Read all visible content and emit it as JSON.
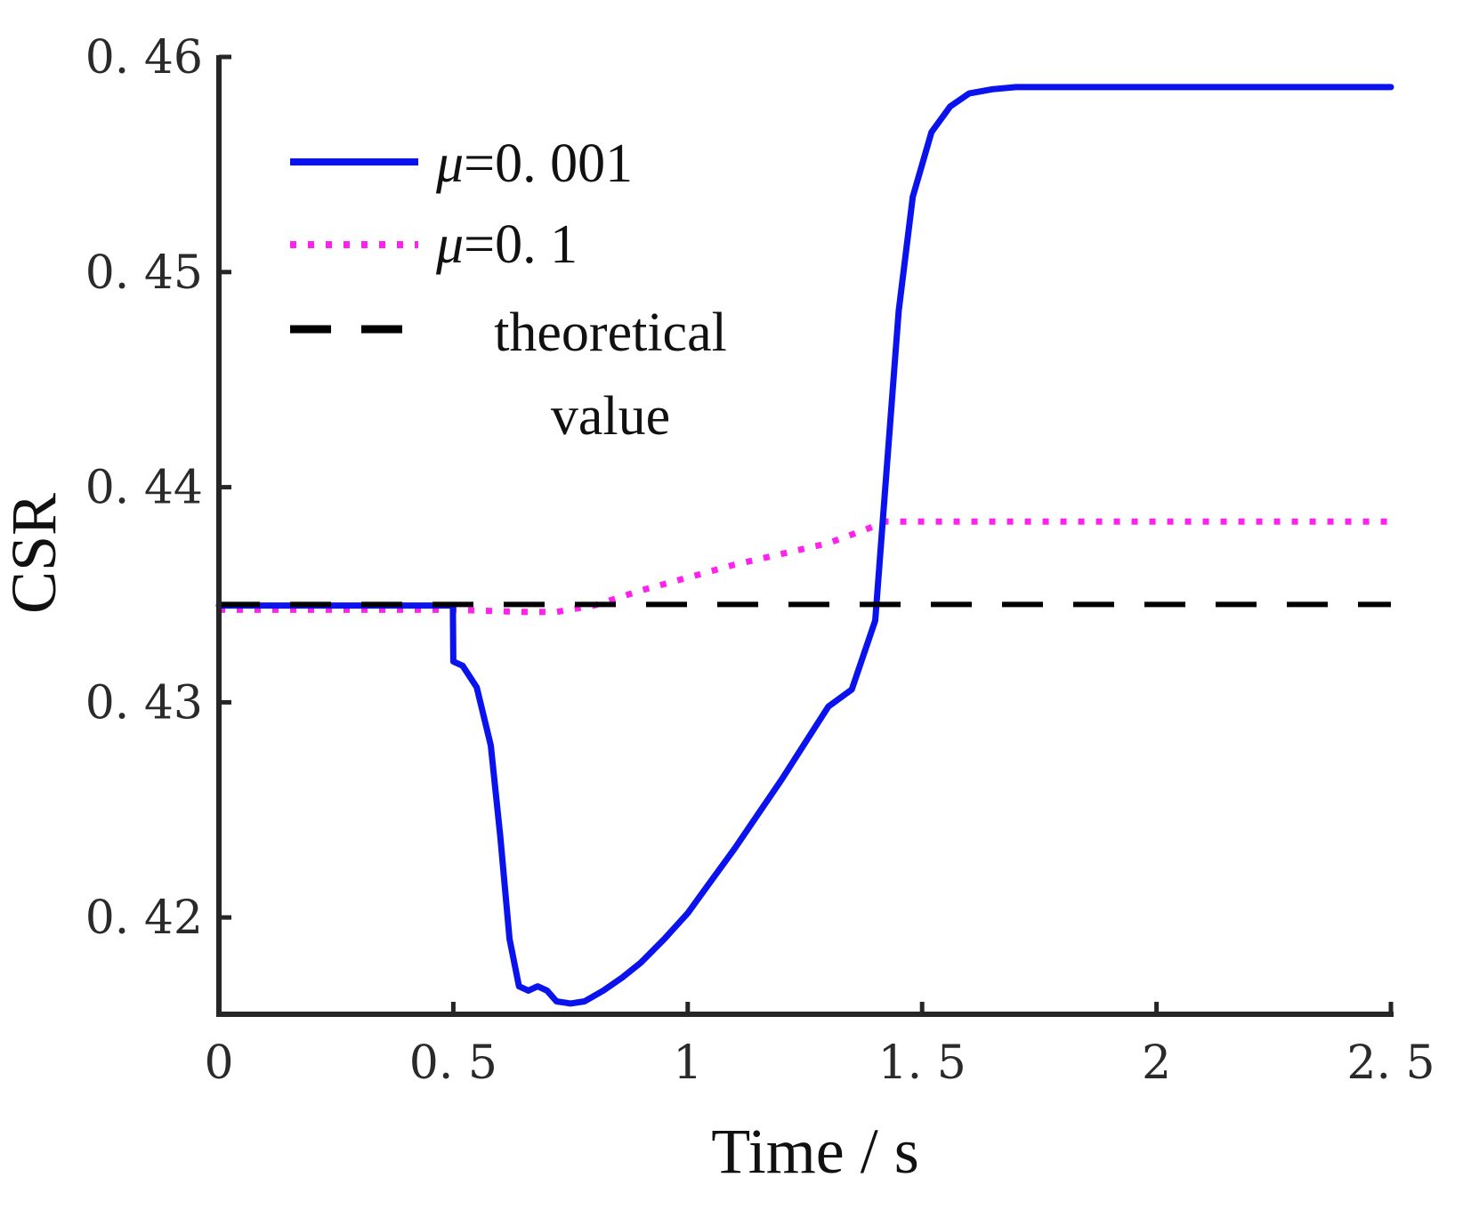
{
  "chart_data": {
    "type": "line",
    "title": "",
    "xlabel": "Time / s",
    "ylabel": "CSR",
    "xlim": [
      0,
      2.5
    ],
    "ylim": [
      0.4155,
      0.46
    ],
    "xticks": [
      0,
      0.5,
      1,
      1.5,
      2,
      2.5
    ],
    "xtick_labels": [
      "0",
      "0. 5",
      "1",
      "1. 5",
      "2",
      "2. 5"
    ],
    "yticks": [
      0.42,
      0.43,
      0.44,
      0.45,
      0.46
    ],
    "ytick_labels": [
      "0. 42",
      "0. 43",
      "0. 44",
      "0. 45",
      "0. 46"
    ],
    "grid": false,
    "legend_position": "top-left",
    "series": [
      {
        "name": "μ=0. 001",
        "legend_symbol": "μ",
        "legend_text": "=0. 001",
        "color": "#0a12ee",
        "style": "solid",
        "x": [
          0,
          0.499,
          0.5,
          0.52,
          0.55,
          0.58,
          0.6,
          0.62,
          0.64,
          0.66,
          0.68,
          0.7,
          0.72,
          0.75,
          0.78,
          0.82,
          0.86,
          0.9,
          0.95,
          1.0,
          1.05,
          1.1,
          1.15,
          1.2,
          1.25,
          1.3,
          1.35,
          1.4,
          1.42,
          1.45,
          1.48,
          1.52,
          1.56,
          1.6,
          1.65,
          1.7,
          1.8,
          1.9,
          2.0,
          2.2,
          2.5
        ],
        "y": [
          0.4345,
          0.4345,
          0.4319,
          0.4317,
          0.4307,
          0.428,
          0.4238,
          0.419,
          0.4168,
          0.4166,
          0.4168,
          0.4166,
          0.4161,
          0.416,
          0.4161,
          0.4166,
          0.4172,
          0.4179,
          0.419,
          0.4202,
          0.4217,
          0.4232,
          0.4248,
          0.4264,
          0.4281,
          0.4298,
          0.4306,
          0.4338,
          0.4396,
          0.4482,
          0.4535,
          0.4565,
          0.4577,
          0.4583,
          0.4585,
          0.4586,
          0.4586,
          0.4586,
          0.4586,
          0.4586,
          0.4586
        ]
      },
      {
        "name": "μ=0. 1",
        "legend_symbol": "μ",
        "legend_text": "=0. 1",
        "color": "#ff22ee",
        "style": "dotted",
        "x": [
          0,
          0.3,
          0.5,
          0.65,
          0.72,
          0.8,
          0.9,
          1.0,
          1.1,
          1.2,
          1.3,
          1.4,
          1.42,
          1.6,
          2.0,
          2.5
        ],
        "y": [
          0.4343,
          0.4343,
          0.4343,
          0.4342,
          0.4342,
          0.4345,
          0.4352,
          0.4358,
          0.4364,
          0.4369,
          0.4374,
          0.4382,
          0.4384,
          0.4384,
          0.4384,
          0.4384
        ]
      },
      {
        "name": "theoretical value",
        "legend_text_line1": "theoretical",
        "legend_text_line2": "value",
        "color": "#000000",
        "style": "dashed",
        "x": [
          0,
          2.5
        ],
        "y": [
          0.43455,
          0.43455
        ]
      }
    ]
  }
}
